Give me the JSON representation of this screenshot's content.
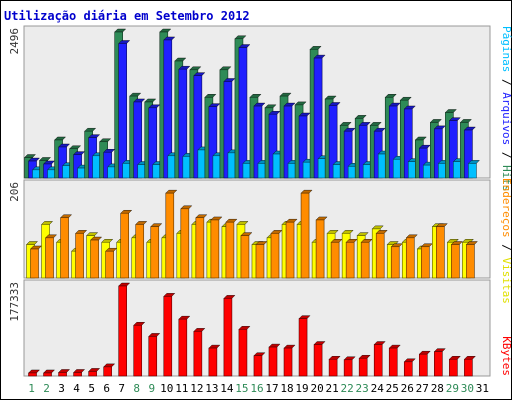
{
  "chart_data": {
    "type": "bar",
    "title": "Utilização diária em Setembro 2012",
    "days": [
      "1",
      "2",
      "3",
      "4",
      "5",
      "6",
      "7",
      "8",
      "9",
      "10",
      "11",
      "12",
      "13",
      "14",
      "15",
      "16",
      "17",
      "18",
      "19",
      "20",
      "21",
      "22",
      "23",
      "24",
      "25",
      "26",
      "27",
      "28",
      "29",
      "30",
      "31"
    ],
    "weekend_days": [
      "1",
      "2",
      "8",
      "9",
      "15",
      "16",
      "22",
      "23",
      "29",
      "30"
    ],
    "panels": [
      {
        "id": "traffic",
        "max_label": "2496",
        "ylim": [
          0,
          2496
        ],
        "series": [
          {
            "name": "Hits",
            "color": "#2e8b57",
            "values": [
              350,
              300,
              650,
              500,
              800,
              620,
              2496,
              1400,
              1300,
              2496,
              2000,
              1850,
              1380,
              1850,
              2380,
              1380,
              1200,
              1400,
              1250,
              2200,
              1350,
              900,
              1020,
              900,
              1380,
              1330,
              650,
              950,
              1120,
              950,
              null
            ]
          },
          {
            "name": "Arquivos",
            "color": "#2020ff",
            "values": [
              290,
              240,
              530,
              400,
              690,
              440,
              2300,
              1300,
              1200,
              2360,
              1860,
              1750,
              1220,
              1650,
              2230,
              1230,
              1090,
              1230,
              1060,
              2050,
              1240,
              800,
              900,
              800,
              1230,
              1180,
              510,
              840,
              980,
              820,
              null
            ]
          },
          {
            "name": "Páginas",
            "color": "#00bfff",
            "values": [
              140,
              140,
              210,
              170,
              380,
              190,
              250,
              230,
              230,
              380,
              370,
              480,
              380,
              430,
              250,
              250,
              410,
              250,
              270,
              330,
              230,
              200,
              230,
              410,
              320,
              280,
              220,
              250,
              280,
              250,
              null
            ]
          }
        ]
      },
      {
        "id": "visits",
        "max_label": "206",
        "ylim": [
          0,
          206
        ],
        "series": [
          {
            "name": "Visitas",
            "color": "#ffff00",
            "values": [
              75,
              120,
              80,
              60,
              95,
              80,
              80,
              90,
              80,
              90,
              100,
              120,
              125,
              115,
              120,
              75,
              90,
              120,
              120,
              80,
              100,
              100,
              95,
              110,
              75,
              80,
              65,
              115,
              80,
              80,
              null
            ]
          },
          {
            "name": "Endereços",
            "color": "#ff8c00",
            "values": [
              65,
              90,
              135,
              100,
              85,
              60,
              145,
              120,
              115,
              190,
              155,
              135,
              130,
              125,
              95,
              75,
              100,
              125,
              190,
              130,
              80,
              80,
              80,
              100,
              70,
              90,
              70,
              115,
              75,
              75,
              null
            ]
          }
        ]
      },
      {
        "id": "bytes",
        "max_label": "177333",
        "ylim": [
          0,
          177333
        ],
        "series": [
          {
            "name": "KBytes",
            "color": "#ff0000",
            "values": [
              6000,
              6000,
              7000,
              7000,
              9000,
              18000,
              177333,
              100000,
              78000,
              157000,
              112000,
              88000,
              55000,
              153000,
              92000,
              40000,
              57000,
              55000,
              113000,
              62000,
              33000,
              32000,
              35000,
              62000,
              55000,
              28000,
              43000,
              48000,
              33000,
              33000,
              null
            ]
          }
        ]
      }
    ]
  },
  "colors": {
    "background": "#ffffff",
    "plot_background": "#ececec",
    "border": "#000000",
    "separator": "#999999",
    "title": "#0000cd",
    "axis_text": "#333333",
    "weekend_text": "#2e8b57"
  }
}
